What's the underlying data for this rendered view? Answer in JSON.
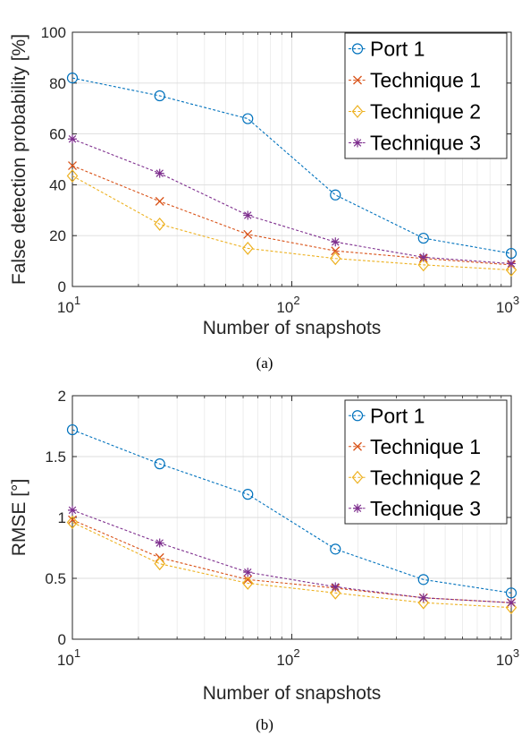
{
  "chart_data": [
    {
      "type": "line",
      "caption": "(a)",
      "xlabel": "Number of snapshots",
      "ylabel": "False detection probability [%]",
      "xscale": "log",
      "xlim": [
        10,
        1000
      ],
      "ylim": [
        0,
        100
      ],
      "xticks": [
        10,
        100,
        1000
      ],
      "xtick_labels": [
        {
          "base": "10",
          "exp": "1"
        },
        {
          "base": "10",
          "exp": "2"
        },
        {
          "base": "10",
          "exp": "3"
        }
      ],
      "yticks": [
        0,
        20,
        40,
        60,
        80,
        100
      ],
      "grid": true,
      "legend_position": "top-right",
      "x": [
        10,
        25,
        63,
        158,
        398,
        1000
      ],
      "series": [
        {
          "name": "Port 1",
          "color": "#0072BD",
          "marker": "circle",
          "values": [
            82,
            75,
            66,
            36,
            19,
            13
          ]
        },
        {
          "name": "Technique 1",
          "color": "#D95319",
          "marker": "x",
          "values": [
            47.5,
            33.5,
            20.5,
            14,
            11,
            8.5
          ]
        },
        {
          "name": "Technique 2",
          "color": "#EDB120",
          "marker": "diamond",
          "values": [
            43.5,
            24.5,
            15,
            11,
            8.5,
            6.5
          ]
        },
        {
          "name": "Technique 3",
          "color": "#7E2F8E",
          "marker": "asterisk",
          "values": [
            58,
            44.5,
            28,
            17.5,
            11.5,
            9
          ]
        }
      ]
    },
    {
      "type": "line",
      "caption": "(b)",
      "xlabel": "Number of snapshots",
      "ylabel": "RMSE [°]",
      "xscale": "log",
      "xlim": [
        10,
        1000
      ],
      "ylim": [
        0,
        2
      ],
      "xticks": [
        10,
        100,
        1000
      ],
      "xtick_labels": [
        {
          "base": "10",
          "exp": "1"
        },
        {
          "base": "10",
          "exp": "2"
        },
        {
          "base": "10",
          "exp": "3"
        }
      ],
      "yticks": [
        0,
        0.5,
        1,
        1.5,
        2
      ],
      "ytick_labels": [
        "0",
        "0.5",
        "1",
        "1.5",
        "2"
      ],
      "grid": true,
      "legend_position": "top-right",
      "x": [
        10,
        25,
        63,
        158,
        398,
        1000
      ],
      "series": [
        {
          "name": "Port 1",
          "color": "#0072BD",
          "marker": "circle",
          "values": [
            1.72,
            1.44,
            1.19,
            0.74,
            0.49,
            0.38
          ]
        },
        {
          "name": "Technique 1",
          "color": "#D95319",
          "marker": "x",
          "values": [
            0.98,
            0.67,
            0.49,
            0.42,
            0.34,
            0.3
          ]
        },
        {
          "name": "Technique 2",
          "color": "#EDB120",
          "marker": "diamond",
          "values": [
            0.96,
            0.62,
            0.46,
            0.38,
            0.3,
            0.26
          ]
        },
        {
          "name": "Technique 3",
          "color": "#7E2F8E",
          "marker": "asterisk",
          "values": [
            1.06,
            0.79,
            0.55,
            0.43,
            0.34,
            0.3
          ]
        }
      ]
    }
  ]
}
